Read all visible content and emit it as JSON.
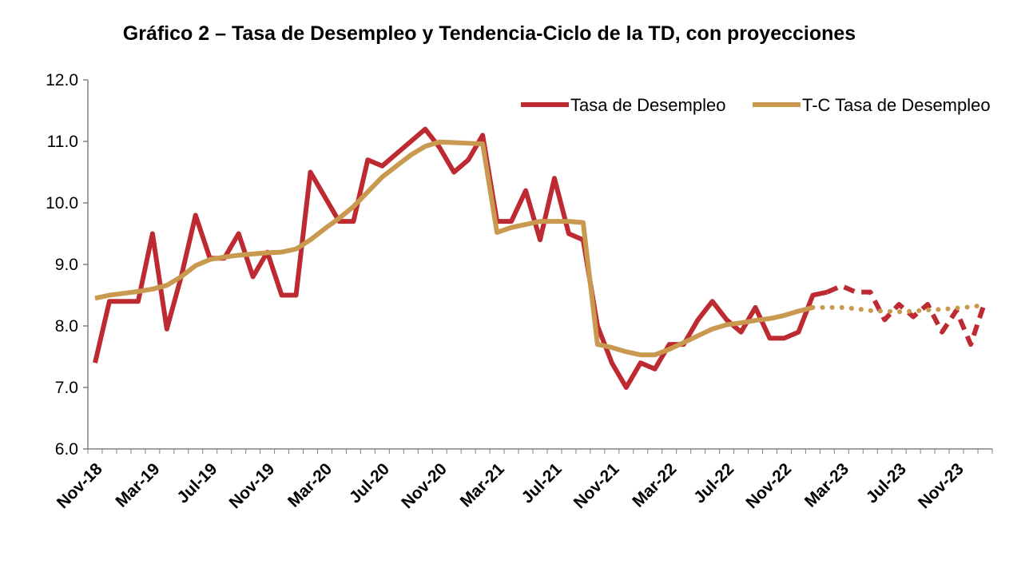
{
  "colors": {
    "tasa": "#be2a31",
    "tc": "#c8994f",
    "axis": "#808080"
  },
  "chart_data": {
    "type": "line",
    "title": "Gráfico 2 – Tasa de Desempleo y Tendencia-Ciclo de la TD, con proyecciones",
    "xlabel": "",
    "ylabel": "",
    "ylim": [
      6.0,
      12.0
    ],
    "yticks": [
      "6.0",
      "7.0",
      "8.0",
      "9.0",
      "10.0",
      "11.0",
      "12.0"
    ],
    "x_tick_labels": [
      "Nov-18",
      "Mar-19",
      "Jul-19",
      "Nov-19",
      "Mar-20",
      "Jul-20",
      "Nov-20",
      "Mar-21",
      "Jul-21",
      "Nov-21",
      "Mar-22",
      "Jul-22",
      "Nov-22",
      "Mar-23",
      "Jul-23",
      "Nov-23"
    ],
    "x": [
      "Nov-18",
      "Dec-18",
      "Jan-19",
      "Feb-19",
      "Mar-19",
      "Apr-19",
      "May-19",
      "Jun-19",
      "Jul-19",
      "Aug-19",
      "Sep-19",
      "Oct-19",
      "Nov-19",
      "Dec-19",
      "Jan-20",
      "Feb-20",
      "Mar-20",
      "Apr-20",
      "May-20",
      "Jun-20",
      "Jul-20",
      "Aug-20",
      "Sep-20",
      "Oct-20",
      "Nov-20",
      "Dec-20",
      "Jan-21",
      "Feb-21",
      "Mar-21",
      "Apr-21",
      "May-21",
      "Jun-21",
      "Jul-21",
      "Aug-21",
      "Sep-21",
      "Oct-21",
      "Nov-21",
      "Dec-21",
      "Jan-22",
      "Feb-22",
      "Mar-22",
      "Apr-22",
      "May-22",
      "Jun-22",
      "Jul-22",
      "Aug-22",
      "Sep-22",
      "Oct-22",
      "Nov-22",
      "Dec-22",
      "Jan-23",
      "Feb-23",
      "Mar-23",
      "Apr-23",
      "May-23",
      "Jun-23",
      "Jul-23",
      "Aug-23",
      "Sep-23",
      "Oct-23",
      "Nov-23",
      "Dec-23",
      "Jan-24"
    ],
    "legend_position": "top-right",
    "grid": false,
    "series": [
      {
        "name": "Tasa de Desempleo",
        "style": "solid",
        "values": [
          7.4,
          8.4,
          8.4,
          8.4,
          9.5,
          7.95,
          8.8,
          9.8,
          9.1,
          9.1,
          9.5,
          8.8,
          9.2,
          8.5,
          8.5,
          10.5,
          10.1,
          9.7,
          9.7,
          10.7,
          10.6,
          10.8,
          11.0,
          11.2,
          10.9,
          10.5,
          10.7,
          11.1,
          9.7,
          9.7,
          10.2,
          9.4,
          10.4,
          9.5,
          9.4,
          8.0,
          7.4,
          7.0,
          7.4,
          7.3,
          7.7,
          7.7,
          8.1,
          8.4,
          8.1,
          7.9,
          8.3,
          7.8,
          7.8,
          7.9,
          8.5,
          8.55,
          null,
          null,
          null,
          null,
          null,
          null,
          null,
          null,
          null,
          null,
          null
        ]
      },
      {
        "name": "",
        "style": "dashed",
        "values": [
          null,
          null,
          null,
          null,
          null,
          null,
          null,
          null,
          null,
          null,
          null,
          null,
          null,
          null,
          null,
          null,
          null,
          null,
          null,
          null,
          null,
          null,
          null,
          null,
          null,
          null,
          null,
          null,
          null,
          null,
          null,
          null,
          null,
          null,
          null,
          null,
          null,
          null,
          null,
          null,
          null,
          null,
          null,
          null,
          null,
          null,
          null,
          null,
          null,
          null,
          null,
          8.55,
          8.65,
          8.55,
          8.55,
          8.1,
          8.35,
          8.15,
          8.35,
          7.9,
          8.25,
          7.7,
          8.4
        ]
      },
      {
        "name": "T-C Tasa de Desempleo",
        "style": "solid",
        "values": [
          8.45,
          8.5,
          8.53,
          8.56,
          8.6,
          8.66,
          8.8,
          8.98,
          9.08,
          9.12,
          9.15,
          9.17,
          9.19,
          9.2,
          9.25,
          9.4,
          9.58,
          9.75,
          9.94,
          10.18,
          10.42,
          10.6,
          10.78,
          10.92,
          10.99,
          10.98,
          10.97,
          10.96,
          9.52,
          9.6,
          9.65,
          9.7,
          9.7,
          9.7,
          9.68,
          7.7,
          7.65,
          7.58,
          7.53,
          7.53,
          7.62,
          7.73,
          7.84,
          7.95,
          8.02,
          8.05,
          8.09,
          8.12,
          8.17,
          8.24,
          8.3,
          null,
          null,
          null,
          null,
          null,
          null,
          null,
          null,
          null,
          null,
          null,
          null
        ]
      },
      {
        "name": "",
        "style": "dotted",
        "values": [
          null,
          null,
          null,
          null,
          null,
          null,
          null,
          null,
          null,
          null,
          null,
          null,
          null,
          null,
          null,
          null,
          null,
          null,
          null,
          null,
          null,
          null,
          null,
          null,
          null,
          null,
          null,
          null,
          null,
          null,
          null,
          null,
          null,
          null,
          null,
          null,
          null,
          null,
          null,
          null,
          null,
          null,
          null,
          null,
          null,
          null,
          null,
          null,
          null,
          null,
          8.3,
          8.3,
          8.3,
          8.28,
          8.25,
          8.24,
          8.23,
          8.24,
          8.26,
          8.27,
          8.29,
          8.31,
          8.34
        ]
      }
    ]
  }
}
